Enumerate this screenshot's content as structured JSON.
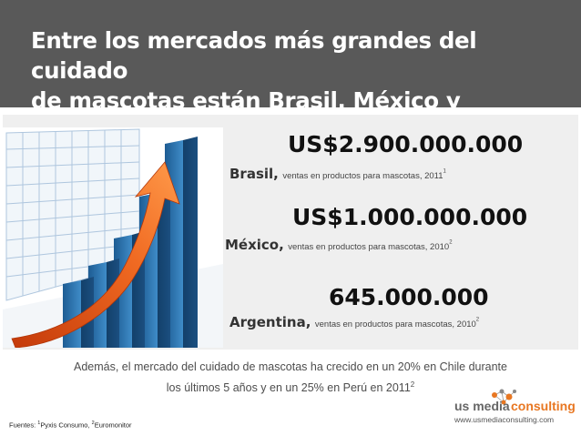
{
  "header": {
    "title_line1": "Entre los mercados más grandes del cuidado",
    "title_line2": "de mascotas están Brasil, México y Argentina."
  },
  "stats": [
    {
      "amount": "US$2.900.000.000",
      "country": "Brasil,",
      "description": "ventas en productos  para mascotas, 2011",
      "ref": "1"
    },
    {
      "amount": "US$1.000.000.000",
      "country": "México,",
      "description": "ventas en productos para mascotas, 2010",
      "ref": "2"
    },
    {
      "amount": "645.000.000",
      "country": "Argentina,",
      "description": "ventas en productos para mascotas, 2010",
      "ref": "2"
    }
  ],
  "note": {
    "line1": "Además, el mercado del cuidado de mascotas ha crecido en un 20% en Chile durante",
    "line2": "los últimos 5 años y en un 25% en Perú en 2011",
    "ref": "2"
  },
  "sources": {
    "prefix": "Fuentes: ",
    "ref1": "1",
    "source1": "Pyxis Consumo, ",
    "ref2": "2",
    "source2": "Euromonitor"
  },
  "logo": {
    "name_part1": "us media",
    "name_part2": "consulting",
    "website": "www.usmediaconsulting.com",
    "icon": "network-dots-icon"
  },
  "colors": {
    "header_bg": "#595959",
    "panel_bg": "#efefef",
    "arrow": "#e8591a",
    "bars": "#2a6fa8",
    "logo_orange": "#e87722",
    "logo_gray": "#666666"
  }
}
